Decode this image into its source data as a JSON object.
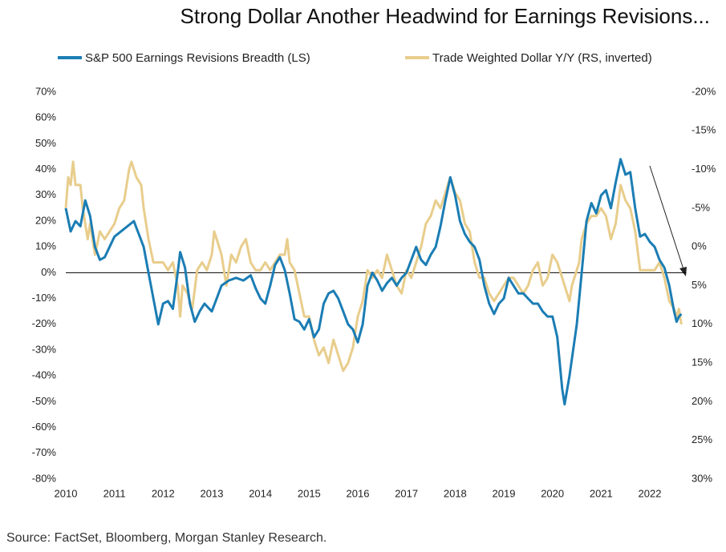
{
  "chart_data": {
    "type": "line",
    "title": "Strong Dollar Another Headwind for Earnings Revisions...",
    "source": "Source: FactSet, Bloomberg, Morgan Stanley Research.",
    "xlim": [
      2010,
      2022.75
    ],
    "xticks": [
      2010,
      2011,
      2012,
      2013,
      2014,
      2015,
      2016,
      2017,
      2018,
      2019,
      2020,
      2021,
      2022
    ],
    "ylim": [
      -80,
      70
    ],
    "yticks": [
      {
        "value": -80,
        "label": "-80%"
      },
      {
        "value": -70,
        "label": "-70%"
      },
      {
        "value": -60,
        "label": "-60%"
      },
      {
        "value": -50,
        "label": "-50%"
      },
      {
        "value": -40,
        "label": "-40%"
      },
      {
        "value": -30,
        "label": "-30%"
      },
      {
        "value": -20,
        "label": "-20%"
      },
      {
        "value": -10,
        "label": "-10%"
      },
      {
        "value": 0,
        "label": "0%"
      },
      {
        "value": 10,
        "label": "10%"
      },
      {
        "value": 20,
        "label": "20%"
      },
      {
        "value": 30,
        "label": "30%"
      },
      {
        "value": 40,
        "label": "40%"
      },
      {
        "value": 50,
        "label": "50%"
      },
      {
        "value": 60,
        "label": "60%"
      },
      {
        "value": 70,
        "label": "70%"
      }
    ],
    "y2lim": [
      30,
      -20
    ],
    "y2ticks": [
      {
        "value": 30,
        "label": "30%"
      },
      {
        "value": 25,
        "label": "25%"
      },
      {
        "value": 20,
        "label": "20%"
      },
      {
        "value": 15,
        "label": "15%"
      },
      {
        "value": 10,
        "label": "10%"
      },
      {
        "value": 5,
        "label": "5%"
      },
      {
        "value": 0,
        "label": "0%"
      },
      {
        "value": -5,
        "label": "-5%"
      },
      {
        "value": -10,
        "label": "-10%"
      },
      {
        "value": -15,
        "label": "-15%"
      },
      {
        "value": -20,
        "label": "-20%"
      }
    ],
    "series": [
      {
        "name": "S&P 500 Earnings Revisions Breadth (LS)",
        "color": "#1b7db4",
        "axis": "y",
        "x": [
          2010.0,
          2010.1,
          2010.2,
          2010.3,
          2010.4,
          2010.5,
          2010.6,
          2010.7,
          2010.8,
          2010.9,
          2011.0,
          2011.2,
          2011.4,
          2011.5,
          2011.6,
          2011.7,
          2011.8,
          2011.9,
          2012.0,
          2012.1,
          2012.2,
          2012.3,
          2012.35,
          2012.45,
          2012.55,
          2012.65,
          2012.75,
          2012.85,
          2013.0,
          2013.1,
          2013.2,
          2013.35,
          2013.5,
          2013.65,
          2013.8,
          2013.9,
          2014.0,
          2014.1,
          2014.2,
          2014.3,
          2014.4,
          2014.5,
          2014.6,
          2014.7,
          2014.8,
          2014.9,
          2015.0,
          2015.1,
          2015.2,
          2015.3,
          2015.4,
          2015.5,
          2015.6,
          2015.7,
          2015.8,
          2015.9,
          2016.0,
          2016.1,
          2016.2,
          2016.3,
          2016.4,
          2016.5,
          2016.6,
          2016.7,
          2016.8,
          2016.9,
          2017.0,
          2017.2,
          2017.3,
          2017.4,
          2017.5,
          2017.6,
          2017.7,
          2017.8,
          2017.9,
          2018.0,
          2018.1,
          2018.2,
          2018.3,
          2018.4,
          2018.5,
          2018.6,
          2018.7,
          2018.8,
          2018.9,
          2019.0,
          2019.1,
          2019.2,
          2019.3,
          2019.4,
          2019.5,
          2019.6,
          2019.7,
          2019.8,
          2019.9,
          2020.0,
          2020.1,
          2020.2,
          2020.25,
          2020.35,
          2020.5,
          2020.6,
          2020.7,
          2020.8,
          2020.9,
          2021.0,
          2021.1,
          2021.2,
          2021.3,
          2021.4,
          2021.5,
          2021.6,
          2021.7,
          2021.8,
          2021.9,
          2022.0,
          2022.1,
          2022.2,
          2022.3,
          2022.4,
          2022.5,
          2022.55,
          2022.6,
          2022.65
        ],
        "values": [
          25,
          16,
          20,
          18,
          28,
          22,
          10,
          5,
          6,
          10,
          14,
          17,
          20,
          15,
          10,
          0,
          -10,
          -20,
          -12,
          -11,
          -14,
          0,
          8,
          2,
          -12,
          -19,
          -15,
          -12,
          -15,
          -10,
          -5,
          -3,
          -2,
          -3,
          -1,
          -6,
          -10,
          -12,
          -5,
          3,
          6,
          1,
          -8,
          -18,
          -19,
          -22,
          -18,
          -25,
          -22,
          -12,
          -8,
          -7,
          -10,
          -15,
          -20,
          -22,
          -27,
          -20,
          -5,
          0,
          -3,
          -7,
          -4,
          -2,
          -5,
          -2,
          0,
          10,
          5,
          3,
          7,
          10,
          18,
          28,
          37,
          30,
          20,
          15,
          12,
          10,
          5,
          -5,
          -12,
          -16,
          -12,
          -10,
          -2,
          -5,
          -8,
          -8,
          -10,
          -12,
          -12,
          -15,
          -17,
          -17,
          -25,
          -45,
          -51,
          -40,
          -20,
          0,
          20,
          27,
          23,
          30,
          32,
          25,
          35,
          44,
          38,
          39,
          25,
          14,
          15,
          12,
          10,
          5,
          2,
          -5,
          -15,
          -19,
          -17,
          -16
        ]
      },
      {
        "name": "Trade Weighted Dollar Y/Y (RS, inverted)",
        "color": "#e8cd8c",
        "axis": "y2",
        "x": [
          2010.0,
          2010.05,
          2010.1,
          2010.15,
          2010.2,
          2010.3,
          2010.35,
          2010.45,
          2010.5,
          2010.6,
          2010.7,
          2010.8,
          2010.9,
          2011.0,
          2011.1,
          2011.2,
          2011.3,
          2011.35,
          2011.45,
          2011.55,
          2011.6,
          2011.7,
          2011.8,
          2011.9,
          2012.0,
          2012.1,
          2012.2,
          2012.3,
          2012.35,
          2012.4,
          2012.5,
          2012.6,
          2012.7,
          2012.8,
          2012.9,
          2013.0,
          2013.05,
          2013.1,
          2013.2,
          2013.3,
          2013.4,
          2013.5,
          2013.6,
          2013.7,
          2013.8,
          2013.9,
          2014.0,
          2014.1,
          2014.2,
          2014.3,
          2014.4,
          2014.5,
          2014.55,
          2014.6,
          2014.7,
          2014.8,
          2014.9,
          2015.0,
          2015.1,
          2015.2,
          2015.3,
          2015.4,
          2015.5,
          2015.6,
          2015.7,
          2015.8,
          2015.9,
          2016.0,
          2016.1,
          2016.2,
          2016.3,
          2016.4,
          2016.5,
          2016.6,
          2016.7,
          2016.8,
          2016.9,
          2017.0,
          2017.1,
          2017.2,
          2017.3,
          2017.4,
          2017.5,
          2017.6,
          2017.7,
          2017.8,
          2017.9,
          2018.0,
          2018.1,
          2018.2,
          2018.3,
          2018.4,
          2018.5,
          2018.6,
          2018.7,
          2018.8,
          2018.9,
          2019.0,
          2019.1,
          2019.2,
          2019.3,
          2019.4,
          2019.5,
          2019.6,
          2019.7,
          2019.8,
          2019.9,
          2020.0,
          2020.1,
          2020.2,
          2020.3,
          2020.35,
          2020.4,
          2020.5,
          2020.55,
          2020.6,
          2020.7,
          2020.8,
          2020.9,
          2021.0,
          2021.1,
          2021.2,
          2021.3,
          2021.4,
          2021.5,
          2021.6,
          2021.7,
          2021.8,
          2021.9,
          2022.0,
          2022.1,
          2022.2,
          2022.3,
          2022.4,
          2022.5,
          2022.55,
          2022.6,
          2022.65
        ],
        "values": [
          -5,
          -9,
          -8,
          -11,
          -8,
          -8,
          -5,
          -1,
          -3,
          1,
          -2,
          -1,
          -2,
          -3,
          -5,
          -6,
          -10,
          -11,
          -9,
          -8,
          -5,
          -1,
          2,
          2,
          2,
          3,
          2,
          5,
          9,
          5,
          6,
          8,
          3,
          2,
          3,
          1,
          -2,
          -1,
          1,
          5,
          1,
          2,
          0,
          -1,
          2,
          3,
          3,
          2,
          3,
          2,
          1,
          1,
          -1,
          2,
          3,
          6,
          9,
          9,
          12,
          14,
          13,
          15,
          12,
          14,
          16,
          15,
          13,
          9,
          7,
          3,
          4,
          3,
          4,
          1,
          3,
          5,
          6,
          3,
          4,
          2,
          0,
          -3,
          -4,
          -6,
          -5,
          -7,
          -9,
          -7,
          -6,
          -3,
          -2,
          2,
          4,
          4,
          6,
          7,
          6,
          5,
          4,
          4,
          5,
          6,
          5,
          3,
          2,
          5,
          4,
          1,
          2,
          4,
          6,
          7,
          5,
          3,
          2,
          -1,
          -3,
          -4,
          -4,
          -5,
          -4,
          -1,
          -3,
          -8,
          -6,
          -5,
          -2,
          3,
          3,
          3,
          3,
          2,
          4,
          7,
          8,
          9,
          8,
          10
        ]
      }
    ]
  }
}
